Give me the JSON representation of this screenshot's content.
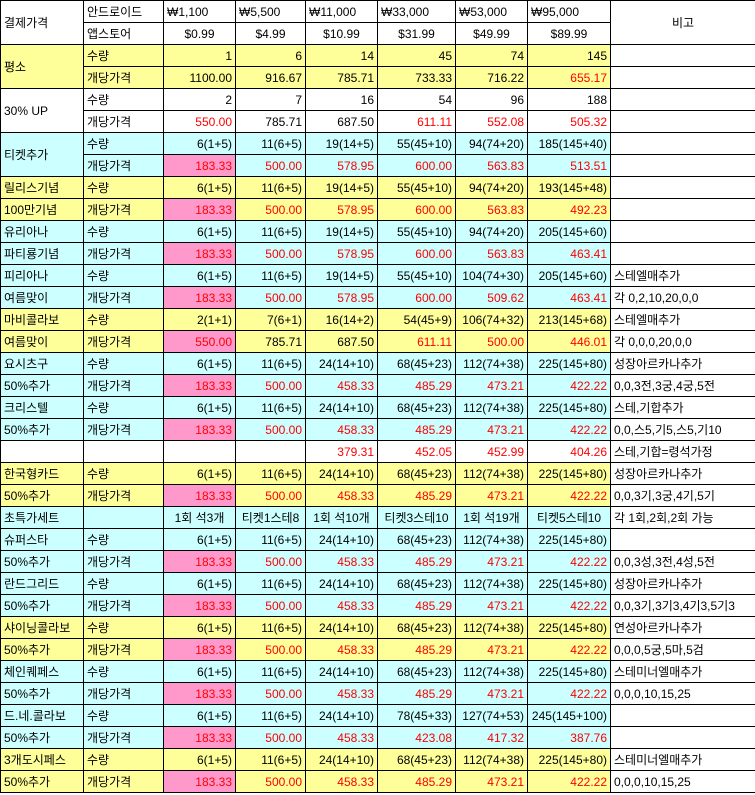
{
  "header": {
    "rows": [
      [
        "결제가격",
        "안드로이드",
        "₩1,100",
        "₩5,500",
        "₩11,000",
        "₩33,000",
        "₩53,000",
        "₩95,000",
        "비고"
      ],
      [
        "앱스토어",
        "$0.99",
        "$4.99",
        "$10.99",
        "$31.99",
        "$49.99",
        "$89.99"
      ]
    ]
  },
  "table": {
    "rows": [
      {
        "span": 2,
        "fill": "#ffff99",
        "cells": [
          "평소",
          "수량",
          "1",
          "6",
          "14",
          "45",
          "74",
          "145",
          null
        ]
      },
      {
        "fill": "#ffff99",
        "red": [
          6
        ],
        "cells": [
          "개당가격",
          "1100.00",
          "916.67",
          "785.71",
          "733.33",
          "716.22",
          "655.17",
          null
        ]
      },
      {
        "span": 2,
        "fill": "#ffffff",
        "cells": [
          "30% UP",
          "수량",
          "2",
          "7",
          "16",
          "54",
          "96",
          "188",
          null
        ]
      },
      {
        "fill": "#ffffff",
        "red": [
          1,
          4,
          5,
          6
        ],
        "cells": [
          "개당가격",
          "550.00",
          "785.71",
          "687.50",
          "611.11",
          "552.08",
          "505.32",
          null
        ]
      },
      {
        "span": 2,
        "fill": "#ccffff",
        "cells": [
          "티켓추가",
          "수량",
          "6(1+5)",
          "11(6+5)",
          "19(14+5)",
          "55(45+10)",
          "94(74+20)",
          "185(145+40)",
          null
        ]
      },
      {
        "fill": "#ccffff",
        "red": [
          1,
          2,
          3,
          4,
          5,
          6
        ],
        "pink": [
          1
        ],
        "cells": [
          "개당가격",
          "183.33",
          "500.00",
          "578.95",
          "600.00",
          "563.83",
          "513.51",
          null
        ]
      },
      {
        "fill": "#ffff99",
        "cells": [
          "릴리스기념",
          "수량",
          "6(1+5)",
          "11(6+5)",
          "19(14+5)",
          "55(45+10)",
          "94(74+20)",
          "193(145+48)",
          null
        ]
      },
      {
        "fill": "#ffff99",
        "red": [
          2,
          3,
          4,
          5,
          6,
          7
        ],
        "pink": [
          2
        ],
        "cells": [
          "100만기념",
          "개당가격",
          "183.33",
          "500.00",
          "578.95",
          "600.00",
          "563.83",
          "492.23",
          null
        ]
      },
      {
        "fill": "#ccffff",
        "cells": [
          "유리아나",
          "수량",
          "6(1+5)",
          "11(6+5)",
          "19(14+5)",
          "55(45+10)",
          "94(74+20)",
          "205(145+60)",
          null
        ]
      },
      {
        "fill": "#ccffff",
        "red": [
          2,
          3,
          4,
          5,
          6,
          7
        ],
        "pink": [
          2
        ],
        "cells": [
          "파티룡기념",
          "개당가격",
          "183.33",
          "500.00",
          "578.95",
          "600.00",
          "563.83",
          "463.41",
          null
        ]
      },
      {
        "fill": "#ccffff",
        "cells": [
          "피리아나",
          "수량",
          "6(1+5)",
          "11(6+5)",
          "19(14+5)",
          "55(45+10)",
          "104(74+30)",
          "205(145+60)",
          "스테엘매추가"
        ]
      },
      {
        "fill": "#ccffff",
        "red": [
          2,
          3,
          4,
          5,
          6,
          7
        ],
        "pink": [
          2
        ],
        "cells": [
          "여름맞이",
          "개당가격",
          "183.33",
          "500.00",
          "578.95",
          "600.00",
          "509.62",
          "463.41",
          "각 0,2,10,20,0,0"
        ]
      },
      {
        "fill": "#ffff99",
        "cells": [
          "마비콜라보",
          "수량",
          "2(1+1)",
          "7(6+1)",
          "16(14+2)",
          "54(45+9)",
          "106(74+32)",
          "213(145+68)",
          "스테엘매추가"
        ]
      },
      {
        "fill": "#ffff99",
        "red": [
          2,
          5,
          6,
          7
        ],
        "pink": [
          2
        ],
        "cells": [
          "여름맞이",
          "개당가격",
          "550.00",
          "785.71",
          "687.50",
          "611.11",
          "500.00",
          "446.01",
          "각 0,0,0,20,0,0"
        ]
      },
      {
        "fill": "#ccffff",
        "cells": [
          "요시츠구",
          "수량",
          "6(1+5)",
          "11(6+5)",
          "24(14+10)",
          "68(45+23)",
          "112(74+38)",
          "225(145+80)",
          "성장아르카나추가"
        ]
      },
      {
        "fill": "#ccffff",
        "red": [
          2,
          3,
          4,
          5,
          6,
          7
        ],
        "pink": [
          2
        ],
        "cells": [
          "50%추가",
          "개당가격",
          "183.33",
          "500.00",
          "458.33",
          "485.29",
          "473.21",
          "422.22",
          "0,0,3전,3궁,4궁,5전"
        ]
      },
      {
        "fill": "#ccffff",
        "cells": [
          "크리스텔",
          "수량",
          "6(1+5)",
          "11(6+5)",
          "24(14+10)",
          "68(45+23)",
          "112(74+38)",
          "225(145+80)",
          "스테,기합추가"
        ]
      },
      {
        "fill": "#ccffff",
        "red": [
          2,
          3,
          4,
          5,
          6,
          7
        ],
        "pink": [
          2
        ],
        "cells": [
          "50%추가",
          "개당가격",
          "183.33",
          "500.00",
          "458.33",
          "485.29",
          "473.21",
          "422.22",
          "0,0,스5,기5,스5,기10"
        ]
      },
      {
        "fill": "#ffffff",
        "red": [
          4,
          5,
          6,
          7
        ],
        "cells": [
          null,
          null,
          null,
          null,
          "379.31",
          "452.05",
          "452.99",
          "404.26",
          "스테,기합=령석가정"
        ]
      },
      {
        "fill": "#ffff99",
        "cells": [
          "한국형카드",
          "수량",
          "6(1+5)",
          "11(6+5)",
          "24(14+10)",
          "68(45+23)",
          "112(74+38)",
          "225(145+80)",
          "성장아르카나추가"
        ]
      },
      {
        "fill": "#ffff99",
        "red": [
          2,
          3,
          4,
          5,
          6,
          7
        ],
        "pink": [
          2
        ],
        "cells": [
          "50%추가",
          "개당가격",
          "183.33",
          "500.00",
          "458.33",
          "485.29",
          "473.21",
          "422.22",
          "0,0,3기,3궁,4기,5기"
        ]
      },
      {
        "fill": "#ccffff",
        "align": "center",
        "cells": [
          "초특가세트",
          null,
          "1회 석3개",
          "티켓1스테8",
          "1회 석10개",
          "티켓3스테10",
          "1회 석19개",
          "티켓5스테10",
          "각 1회,2회,2회 가능"
        ]
      },
      {
        "fill": "#ccffff",
        "cells": [
          "슈퍼스타",
          "수량",
          "6(1+5)",
          "11(6+5)",
          "24(14+10)",
          "68(45+23)",
          "112(74+38)",
          "225(145+80)",
          null
        ]
      },
      {
        "fill": "#ccffff",
        "red": [
          2,
          3,
          4,
          5,
          6,
          7
        ],
        "pink": [
          2
        ],
        "cells": [
          "50%추가",
          "개당가격",
          "183.33",
          "500.00",
          "458.33",
          "485.29",
          "473.21",
          "422.22",
          "0,0,3성,3전,4성,5전"
        ]
      },
      {
        "fill": "#ccffff",
        "cells": [
          "란드그리드",
          "수량",
          "6(1+5)",
          "11(6+5)",
          "24(14+10)",
          "68(45+23)",
          "112(74+38)",
          "225(145+80)",
          "성장아르카나추가"
        ]
      },
      {
        "fill": "#ccffff",
        "red": [
          2,
          3,
          4,
          5,
          6,
          7
        ],
        "pink": [
          2
        ],
        "cells": [
          "50%추가",
          "개당가격",
          "183.33",
          "500.00",
          "458.33",
          "485.29",
          "473.21",
          "422.22",
          "0,0,3기,3기3,4기3,5기3"
        ]
      },
      {
        "fill": "#ffff99",
        "cells": [
          "샤이닝콜라보",
          "수량",
          "6(1+5)",
          "11(6+5)",
          "24(14+10)",
          "68(45+23)",
          "112(74+38)",
          "225(145+80)",
          "연성아르카나추가"
        ]
      },
      {
        "fill": "#ffff99",
        "red": [
          2,
          3,
          4,
          5,
          6,
          7
        ],
        "pink": [
          2
        ],
        "cells": [
          "50%추가",
          "개당가격",
          "183.33",
          "500.00",
          "458.33",
          "485.29",
          "473.21",
          "422.22",
          "0,0,0,5궁,5마,5검"
        ]
      },
      {
        "fill": "#ccffff",
        "cells": [
          "체인퀘페스",
          "수량",
          "6(1+5)",
          "11(6+5)",
          "24(14+10)",
          "68(45+23)",
          "112(74+38)",
          "225(145+80)",
          "스테미너엘매추가"
        ]
      },
      {
        "fill": "#ccffff",
        "red": [
          2,
          3,
          4,
          5,
          6,
          7
        ],
        "pink": [
          2
        ],
        "cells": [
          "50%추가",
          "개당가격",
          "183.33",
          "500.00",
          "458.33",
          "485.29",
          "473.21",
          "422.22",
          "0,0,0,10,15,25"
        ]
      },
      {
        "fill": "#ccffff",
        "cells": [
          "드.네.콜라보",
          "수량",
          "6(1+5)",
          "11(6+5)",
          "24(14+10)",
          "78(45+33)",
          "127(74+53)",
          "245(145+100)",
          null
        ]
      },
      {
        "fill": "#ccffff",
        "red": [
          2,
          3,
          4,
          5,
          6,
          7
        ],
        "pink": [
          2
        ],
        "cells": [
          "50%추가",
          "개당가격",
          "183.33",
          "500.00",
          "458.33",
          "423.08",
          "417.32",
          "387.76",
          null
        ]
      },
      {
        "fill": "#ffff99",
        "cells": [
          "3개도시페스",
          "수량",
          "6(1+5)",
          "11(6+5)",
          "24(14+10)",
          "68(45+23)",
          "112(74+38)",
          "225(145+80)",
          "스테미너엘매추가"
        ]
      },
      {
        "fill": "#ffff99",
        "red": [
          2,
          3,
          4,
          5,
          6,
          7
        ],
        "pink": [
          2
        ],
        "cells": [
          "50%추가",
          "개당가격",
          "183.33",
          "500.00",
          "458.33",
          "485.29",
          "473.21",
          "422.22",
          "0,0,0,10,15,25"
        ]
      }
    ]
  }
}
